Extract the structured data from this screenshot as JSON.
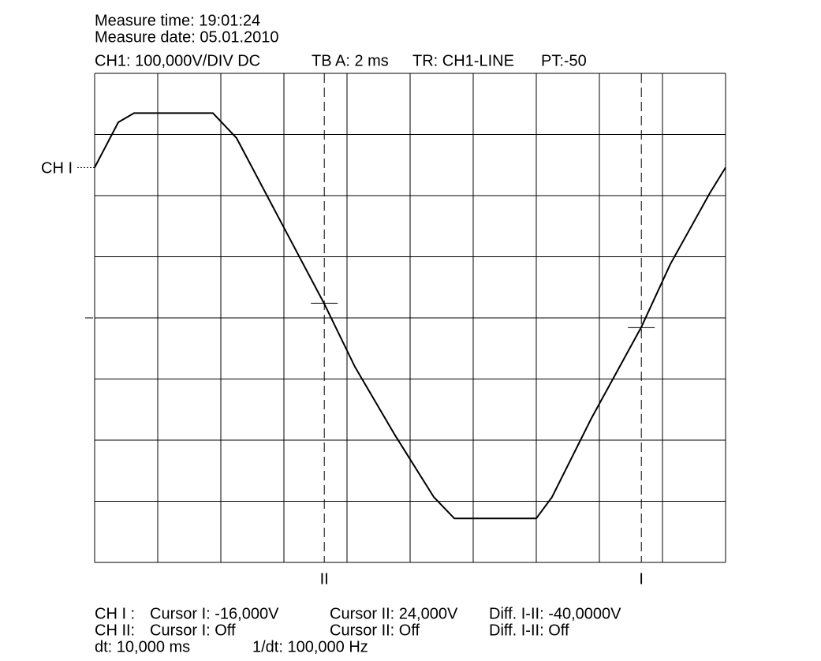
{
  "chart_data": {
    "type": "line",
    "header": [
      "Measure time: 19:01:24",
      "Measure date: 05.01.2010"
    ],
    "settings": [
      "CH1: 100,000V/DIV DC",
      "TB A: 2 ms",
      "TR: CH1-LINE",
      "PT:-50"
    ],
    "channel_marker": {
      "label": "CH I",
      "value": 246
    },
    "x": [
      0,
      0.75,
      1.25,
      3.75,
      4.5,
      5.75,
      7.28,
      8.25,
      9.5,
      10.75,
      11.4,
      14,
      14.5,
      15.75,
      17.33,
      18.25,
      19.5,
      20
    ],
    "values": [
      246,
      320,
      335,
      335,
      294,
      172,
      23,
      -80,
      -190,
      -293,
      -328,
      -328,
      -293,
      -164,
      -15,
      88,
      204,
      246
    ],
    "color": "#000000",
    "xlim": [
      0,
      20
    ],
    "ylim": [
      -400,
      400
    ],
    "xticks": [
      0,
      2,
      4,
      6,
      8,
      10,
      12,
      14,
      16,
      18,
      20
    ],
    "yticks": [
      -400,
      -300,
      -200,
      -100,
      0,
      100,
      200,
      300,
      400
    ],
    "grid": true,
    "cursors": [
      {
        "label": "II",
        "x": 7.28,
        "y": 24
      },
      {
        "label": "I",
        "x": 17.33,
        "y": -16
      }
    ],
    "footer": [
      [
        "CH I :",
        "Cursor I: -16,000V",
        "Cursor II: 24,000V",
        "Diff. I-II: -40,0000V"
      ],
      [
        "CH II:",
        "Cursor I: Off",
        "Cursor II: Off",
        "Diff. I-II: Off"
      ],
      [
        "dt: 10,000 ms",
        "1/dt: 100,000 Hz"
      ]
    ]
  }
}
